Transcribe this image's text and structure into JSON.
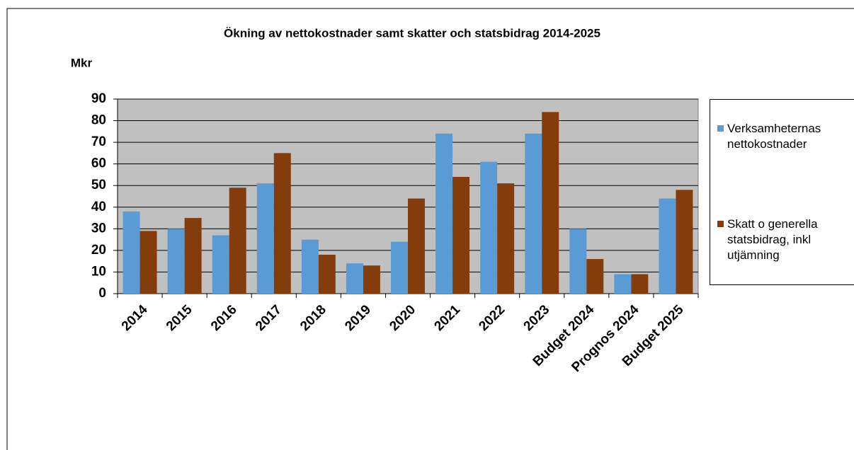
{
  "chart_data": {
    "type": "bar",
    "title": "Ökning av nettokostnader samt skatter och statsbidrag 2014-2025",
    "y_label": "Mkr",
    "categories": [
      "2014",
      "2015",
      "2016",
      "2017",
      "2018",
      "2019",
      "2020",
      "2021",
      "2022",
      "2023",
      "Budget 2024",
      "Prognos 2024",
      "Budget 2025"
    ],
    "series": [
      {
        "name": "Verksamheternas nettokostnader",
        "color": "#5b9bd5",
        "values": [
          38,
          30,
          27,
          51,
          25,
          14,
          24,
          74,
          61,
          74,
          30,
          9,
          44
        ]
      },
      {
        "name": "Skatt o generella statsbidrag, inkl utjämning",
        "color": "#843c0c",
        "values": [
          29,
          35,
          49,
          65,
          18,
          13,
          44,
          54,
          51,
          84,
          16,
          9,
          48
        ]
      }
    ],
    "ylim": [
      0,
      90
    ],
    "yticks": [
      0,
      10,
      20,
      30,
      40,
      50,
      60,
      70,
      80,
      90
    ],
    "grid": true,
    "plot_background": "#c0c0c0",
    "legend": "right"
  }
}
